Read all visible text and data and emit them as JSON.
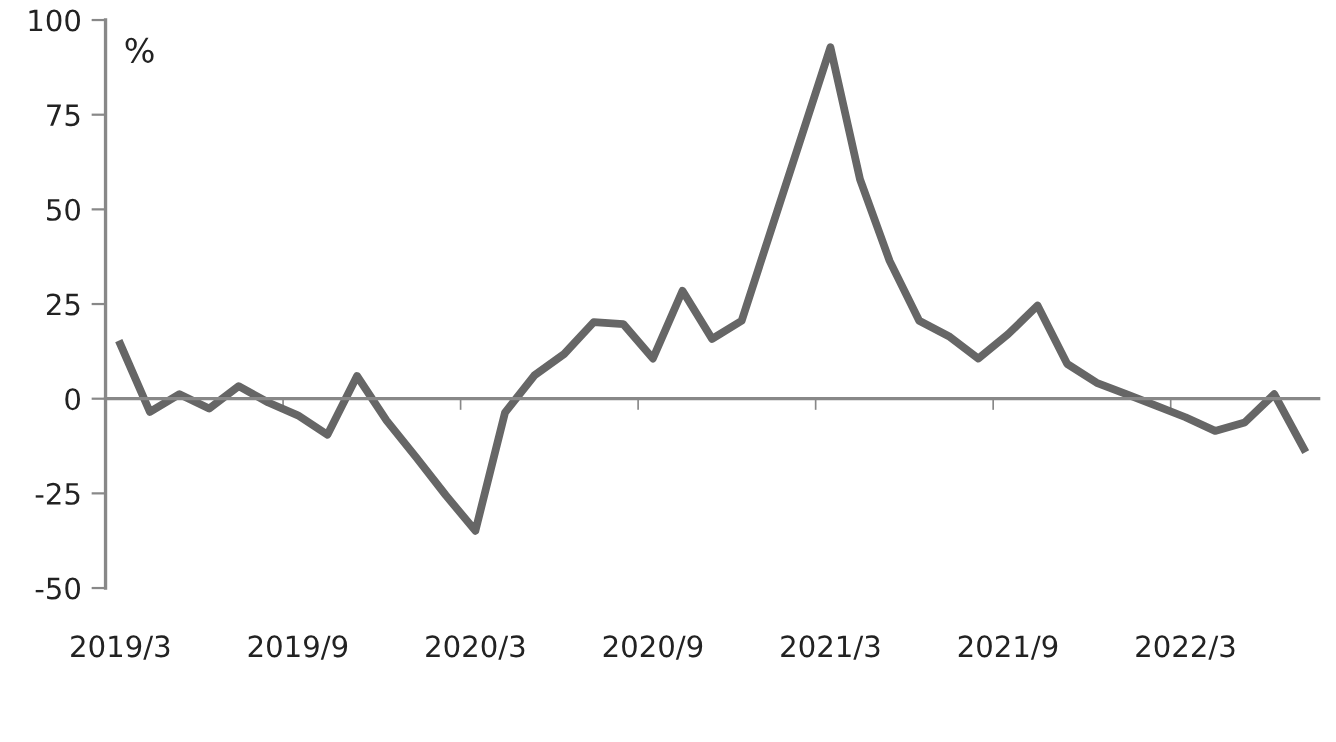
{
  "chart_data": {
    "type": "line",
    "ylabel": "%",
    "categories": [
      "2019/3",
      null,
      null,
      null,
      null,
      null,
      "2019/9",
      null,
      null,
      null,
      null,
      null,
      "2020/3",
      null,
      null,
      null,
      null,
      null,
      "2020/9",
      null,
      null,
      null,
      null,
      null,
      "2021/3",
      null,
      null,
      null,
      null,
      null,
      "2021/9",
      null,
      null,
      null,
      null,
      null,
      "2022/3",
      null,
      null,
      null,
      null
    ],
    "series": [
      {
        "color": "#666666",
        "values": [
          14.4,
          -3.5,
          1.2,
          -2.6,
          3.3,
          -1,
          -4.4,
          -9.5,
          6,
          -5.8,
          -15.5,
          -25.5,
          -34.9,
          -3.7,
          6.2,
          11.8,
          20.2,
          19.7,
          10.6,
          28.5,
          15.8,
          20.6,
          44.7,
          68.7,
          92.8,
          57.9,
          36.4,
          20.6,
          16.5,
          10.6,
          17,
          24.6,
          9.2,
          4.2,
          1.2,
          -1.8,
          -4.9,
          -8.5,
          -6.3,
          1.2,
          -13.2
        ]
      }
    ],
    "ylim": [
      -50,
      100
    ],
    "yticks": [
      -50,
      -25,
      0,
      25,
      50,
      75,
      100
    ],
    "marker": "none",
    "line_style": "solid"
  }
}
